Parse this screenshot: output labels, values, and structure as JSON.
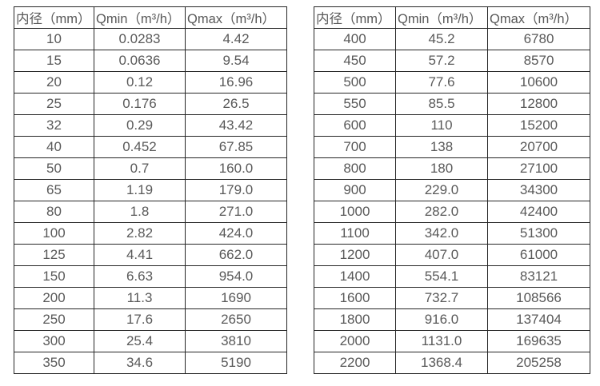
{
  "page": {
    "background": "#ffffff",
    "border_color": "#262626",
    "text_color": "#595959"
  },
  "tables": [
    {
      "name": "flow-table-small-diameters",
      "headers": [
        "内径（mm）",
        "Qmin（m³/h）",
        "Qmax（m³/h）"
      ],
      "rows": [
        [
          "10",
          "0.0283",
          "4.42"
        ],
        [
          "15",
          "0.0636",
          "9.54"
        ],
        [
          "20",
          "0.12",
          "16.96"
        ],
        [
          "25",
          "0.176",
          "26.5"
        ],
        [
          "32",
          "0.29",
          "43.42"
        ],
        [
          "40",
          "0.452",
          "67.85"
        ],
        [
          "50",
          "0.7",
          "160.0"
        ],
        [
          "65",
          "1.19",
          "179.0"
        ],
        [
          "80",
          "1.8",
          "271.0"
        ],
        [
          "100",
          "2.82",
          "424.0"
        ],
        [
          "125",
          "4.41",
          "662.0"
        ],
        [
          "150",
          "6.63",
          "954.0"
        ],
        [
          "200",
          "11.3",
          "1690"
        ],
        [
          "250",
          "17.6",
          "2650"
        ],
        [
          "300",
          "25.4",
          "3810"
        ],
        [
          "350",
          "34.6",
          "5190"
        ]
      ]
    },
    {
      "name": "flow-table-large-diameters",
      "headers": [
        "内径（mm）",
        "Qmin（m³/h）",
        "Qmax（m³/h）"
      ],
      "rows": [
        [
          "400",
          "45.2",
          "6780"
        ],
        [
          "450",
          "57.2",
          "8570"
        ],
        [
          "500",
          "77.6",
          "10600"
        ],
        [
          "550",
          "85.5",
          "12800"
        ],
        [
          "600",
          "110",
          "15200"
        ],
        [
          "700",
          "138",
          "20700"
        ],
        [
          "800",
          "180",
          "27100"
        ],
        [
          "900",
          "229.0",
          "34300"
        ],
        [
          "1000",
          "282.0",
          "42400"
        ],
        [
          "1100",
          "342.0",
          "51300"
        ],
        [
          "1200",
          "407.0",
          "61000"
        ],
        [
          "1400",
          "554.1",
          "83121"
        ],
        [
          "1600",
          "732.7",
          "108566"
        ],
        [
          "1800",
          "916.0",
          "137404"
        ],
        [
          "2000",
          "1131.0",
          "169635"
        ],
        [
          "2200",
          "1368.4",
          "205258"
        ]
      ]
    }
  ]
}
